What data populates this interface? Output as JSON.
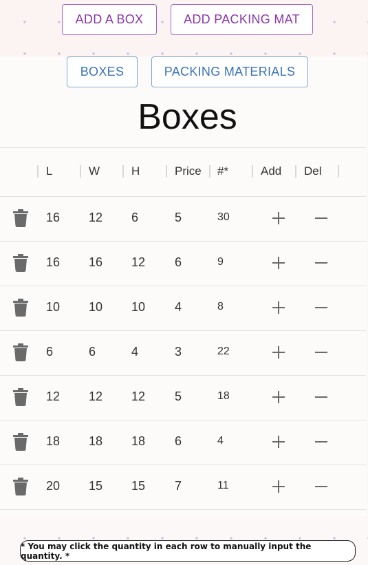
{
  "top_buttons": {
    "add_box": "ADD A BOX",
    "add_packing_mat": "ADD PACKING MAT"
  },
  "nav": {
    "boxes": "BOXES",
    "packing_materials": "PACKING MATERIALS"
  },
  "page_title": "Boxes",
  "table": {
    "headers": {
      "l": "L",
      "w": "W",
      "h": "H",
      "price": "Price",
      "qty": "#*",
      "add": "Add",
      "del": "Del"
    },
    "rows": [
      {
        "l": "16",
        "w": "12",
        "h": "6",
        "price": "5",
        "qty": "30"
      },
      {
        "l": "16",
        "w": "16",
        "h": "12",
        "price": "6",
        "qty": "9"
      },
      {
        "l": "10",
        "w": "10",
        "h": "10",
        "price": "4",
        "qty": "8"
      },
      {
        "l": "6",
        "w": "6",
        "h": "4",
        "price": "3",
        "qty": "22"
      },
      {
        "l": "12",
        "w": "12",
        "h": "12",
        "price": "5",
        "qty": "18"
      },
      {
        "l": "18",
        "w": "18",
        "h": "18",
        "price": "6",
        "qty": "4"
      },
      {
        "l": "20",
        "w": "15",
        "h": "15",
        "price": "7",
        "qty": "11"
      }
    ]
  },
  "footer_note": "* You may click the quantity in each row to manually input the quantity. *",
  "icons": {
    "delete": "trash-icon",
    "add": "plus-icon",
    "remove": "minus-icon"
  },
  "colors": {
    "purple": "#8a35a8",
    "blue": "#3a73b8",
    "icon_gray": "#6a6a6a"
  }
}
